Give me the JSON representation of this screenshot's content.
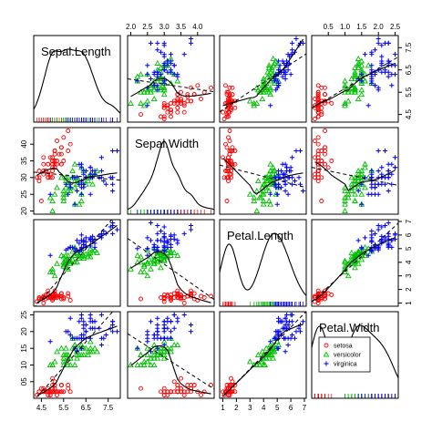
{
  "chart_data": {
    "type": "scatter",
    "title": "",
    "variables": [
      "Sepal.Length",
      "Sepal.Width",
      "Petal.Length",
      "Petal.Width"
    ],
    "groups": [
      {
        "name": "setosa",
        "marker": "circle",
        "color": "#ff0000"
      },
      {
        "name": "versicolor",
        "marker": "triangle",
        "color": "#00c000"
      },
      {
        "name": "virginica",
        "marker": "plus",
        "color": "#0000ff"
      }
    ],
    "axes": [
      {
        "min": 4.3,
        "max": 7.9,
        "ticks": [
          4.5,
          5.5,
          6.5,
          7.5
        ],
        "tick_labels": [
          "4.5",
          "5.5",
          "6.5",
          "7.5"
        ]
      },
      {
        "min": 2.0,
        "max": 4.4,
        "ticks": [
          2.0,
          2.5,
          3.0,
          3.5,
          4.0
        ],
        "tick_labels": [
          "20",
          "25",
          "30",
          "35",
          "40"
        ],
        "top_tick_labels": [
          "2.0",
          "2.5",
          "3.0",
          "3.5",
          "4.0"
        ]
      },
      {
        "min": 1.0,
        "max": 6.9,
        "ticks": [
          1,
          2,
          3,
          4,
          5,
          6,
          7
        ],
        "tick_labels": [
          "1",
          "2",
          "3",
          "4",
          "5",
          "6",
          "7"
        ]
      },
      {
        "min": 0.1,
        "max": 2.5,
        "ticks": [
          0.5,
          1.0,
          1.5,
          2.0,
          2.5
        ],
        "tick_labels": [
          "05",
          "10",
          "15",
          "20",
          "25"
        ],
        "top_tick_labels": [
          "0.5",
          "1.0",
          "1.5",
          "2.0",
          "2.5"
        ]
      }
    ],
    "data": {
      "setosa": {
        "Sepal.Length": [
          5.1,
          4.9,
          4.7,
          4.6,
          5.0,
          5.4,
          4.6,
          5.0,
          4.4,
          4.9,
          5.4,
          4.8,
          4.8,
          4.3,
          5.8,
          5.7,
          5.4,
          5.1,
          5.7,
          5.1,
          5.4,
          5.1,
          4.6,
          5.1,
          4.8,
          5.0,
          5.0,
          5.2,
          5.2,
          4.7,
          4.8,
          5.4,
          5.2,
          5.5,
          4.9,
          5.0,
          5.5,
          4.9,
          4.4,
          5.1,
          5.0,
          4.5,
          4.4,
          5.0,
          5.1,
          4.8,
          5.1,
          4.6,
          5.3,
          5.0
        ],
        "Sepal.Width": [
          3.5,
          3.0,
          3.2,
          3.1,
          3.6,
          3.9,
          3.4,
          3.4,
          2.9,
          3.1,
          3.7,
          3.4,
          3.0,
          3.0,
          4.0,
          4.4,
          3.9,
          3.5,
          3.8,
          3.8,
          3.4,
          3.7,
          3.6,
          3.3,
          3.4,
          3.0,
          3.4,
          3.5,
          3.4,
          3.2,
          3.1,
          3.4,
          4.1,
          4.2,
          3.1,
          3.2,
          3.5,
          3.6,
          3.0,
          3.4,
          3.5,
          2.3,
          3.2,
          3.5,
          3.8,
          3.0,
          3.8,
          3.2,
          3.7,
          3.3
        ],
        "Petal.Length": [
          1.4,
          1.4,
          1.3,
          1.5,
          1.4,
          1.7,
          1.4,
          1.5,
          1.4,
          1.5,
          1.5,
          1.6,
          1.4,
          1.1,
          1.2,
          1.5,
          1.3,
          1.4,
          1.7,
          1.5,
          1.7,
          1.5,
          1.0,
          1.7,
          1.9,
          1.6,
          1.6,
          1.5,
          1.4,
          1.6,
          1.6,
          1.5,
          1.5,
          1.4,
          1.5,
          1.2,
          1.3,
          1.4,
          1.3,
          1.5,
          1.3,
          1.3,
          1.3,
          1.6,
          1.9,
          1.4,
          1.6,
          1.4,
          1.5,
          1.4
        ],
        "Petal.Width": [
          0.2,
          0.2,
          0.2,
          0.2,
          0.2,
          0.4,
          0.3,
          0.2,
          0.2,
          0.1,
          0.2,
          0.2,
          0.1,
          0.1,
          0.2,
          0.4,
          0.4,
          0.3,
          0.3,
          0.3,
          0.2,
          0.4,
          0.2,
          0.5,
          0.2,
          0.2,
          0.4,
          0.2,
          0.2,
          0.2,
          0.2,
          0.4,
          0.1,
          0.2,
          0.2,
          0.2,
          0.2,
          0.1,
          0.2,
          0.2,
          0.3,
          0.3,
          0.2,
          0.6,
          0.4,
          0.3,
          0.2,
          0.2,
          0.2,
          0.2
        ]
      },
      "versicolor": {
        "Sepal.Length": [
          7.0,
          6.4,
          6.9,
          5.5,
          6.5,
          5.7,
          6.3,
          4.9,
          6.6,
          5.2,
          5.0,
          5.9,
          6.0,
          6.1,
          5.6,
          6.7,
          5.6,
          5.8,
          6.2,
          5.6,
          5.9,
          6.1,
          6.3,
          6.1,
          6.4,
          6.6,
          6.8,
          6.7,
          6.0,
          5.7,
          5.5,
          5.5,
          5.8,
          6.0,
          5.4,
          6.0,
          6.7,
          6.3,
          5.6,
          5.5,
          5.5,
          6.1,
          5.8,
          5.0,
          5.6,
          5.7,
          5.7,
          6.2,
          5.1,
          5.7
        ],
        "Sepal.Width": [
          3.2,
          3.2,
          3.1,
          2.3,
          2.8,
          2.8,
          3.3,
          2.4,
          2.9,
          2.7,
          2.0,
          3.0,
          2.2,
          2.9,
          2.9,
          3.1,
          3.0,
          2.7,
          2.2,
          2.5,
          3.2,
          2.8,
          2.5,
          2.8,
          2.9,
          3.0,
          2.8,
          3.0,
          2.9,
          2.6,
          2.4,
          2.4,
          2.7,
          2.7,
          3.0,
          3.4,
          3.1,
          2.3,
          3.0,
          2.5,
          2.6,
          3.0,
          2.6,
          2.3,
          2.7,
          3.0,
          2.9,
          2.9,
          2.5,
          2.8
        ],
        "Petal.Length": [
          4.7,
          4.5,
          4.9,
          4.0,
          4.6,
          4.5,
          4.7,
          3.3,
          4.6,
          3.9,
          3.5,
          4.2,
          4.0,
          4.7,
          3.6,
          4.4,
          4.5,
          4.1,
          4.5,
          3.9,
          4.8,
          4.0,
          4.9,
          4.7,
          4.3,
          4.4,
          4.8,
          5.0,
          4.5,
          3.5,
          3.8,
          3.7,
          3.9,
          5.1,
          4.5,
          4.5,
          4.7,
          4.4,
          4.1,
          4.0,
          4.4,
          4.6,
          4.0,
          3.3,
          4.2,
          4.2,
          4.2,
          4.3,
          3.0,
          4.1
        ],
        "Petal.Width": [
          1.4,
          1.5,
          1.5,
          1.3,
          1.5,
          1.3,
          1.6,
          1.0,
          1.3,
          1.4,
          1.0,
          1.5,
          1.0,
          1.4,
          1.3,
          1.4,
          1.5,
          1.0,
          1.5,
          1.1,
          1.8,
          1.3,
          1.5,
          1.2,
          1.3,
          1.4,
          1.4,
          1.7,
          1.5,
          1.0,
          1.1,
          1.0,
          1.2,
          1.6,
          1.5,
          1.6,
          1.5,
          1.3,
          1.3,
          1.3,
          1.2,
          1.4,
          1.2,
          1.0,
          1.3,
          1.2,
          1.3,
          1.3,
          1.1,
          1.3
        ]
      },
      "virginica": {
        "Sepal.Length": [
          6.3,
          5.8,
          7.1,
          6.3,
          6.5,
          7.6,
          4.9,
          7.3,
          6.7,
          7.2,
          6.5,
          6.4,
          6.8,
          5.7,
          5.8,
          6.4,
          6.5,
          7.7,
          7.7,
          6.0,
          6.9,
          5.6,
          7.7,
          6.3,
          6.7,
          7.2,
          6.2,
          6.1,
          6.4,
          7.2,
          7.4,
          7.9,
          6.4,
          6.3,
          6.1,
          7.7,
          6.3,
          6.4,
          6.0,
          6.9,
          6.7,
          6.9,
          5.8,
          6.8,
          6.7,
          6.7,
          6.3,
          6.5,
          6.2,
          5.9
        ],
        "Sepal.Width": [
          3.3,
          2.7,
          3.0,
          2.9,
          3.0,
          3.0,
          2.5,
          2.9,
          2.5,
          3.6,
          3.2,
          2.7,
          3.0,
          2.5,
          2.8,
          3.2,
          3.0,
          3.8,
          2.6,
          2.2,
          3.2,
          2.8,
          2.8,
          2.7,
          3.3,
          3.2,
          2.8,
          3.0,
          2.8,
          3.0,
          2.8,
          3.8,
          2.8,
          2.8,
          2.6,
          3.0,
          3.4,
          3.1,
          3.0,
          3.1,
          3.1,
          3.1,
          2.7,
          3.2,
          3.3,
          3.0,
          2.5,
          3.0,
          3.4,
          3.0
        ],
        "Petal.Length": [
          6.0,
          5.1,
          5.9,
          5.6,
          5.8,
          6.6,
          4.5,
          6.3,
          5.8,
          6.1,
          5.1,
          5.3,
          5.5,
          5.0,
          5.1,
          5.3,
          5.5,
          6.7,
          6.9,
          5.0,
          5.7,
          4.9,
          6.7,
          4.9,
          5.7,
          6.0,
          4.8,
          4.9,
          5.6,
          5.8,
          6.1,
          6.4,
          5.6,
          5.1,
          5.6,
          6.1,
          5.6,
          5.5,
          4.8,
          5.4,
          5.6,
          5.1,
          5.1,
          5.9,
          5.7,
          5.2,
          5.0,
          5.2,
          5.4,
          5.1
        ],
        "Petal.Width": [
          2.5,
          1.9,
          2.1,
          1.8,
          2.2,
          2.1,
          1.7,
          1.8,
          1.8,
          2.5,
          2.0,
          1.9,
          2.1,
          2.0,
          2.4,
          2.3,
          1.8,
          2.2,
          2.3,
          1.5,
          2.3,
          2.0,
          2.0,
          1.8,
          2.1,
          1.8,
          1.8,
          1.8,
          2.1,
          1.6,
          1.9,
          2.0,
          2.2,
          1.5,
          1.4,
          2.3,
          2.4,
          1.8,
          1.8,
          2.1,
          2.4,
          2.3,
          1.9,
          2.3,
          2.5,
          2.3,
          1.9,
          2.0,
          2.3,
          1.8
        ]
      }
    },
    "diagonal": "density",
    "smoother": "lowess-solid",
    "regression": "least-squares-dashed",
    "legend": {
      "position": "bottom-right-panel",
      "entries": [
        "setosa",
        "versicolor",
        "virginica"
      ]
    }
  }
}
